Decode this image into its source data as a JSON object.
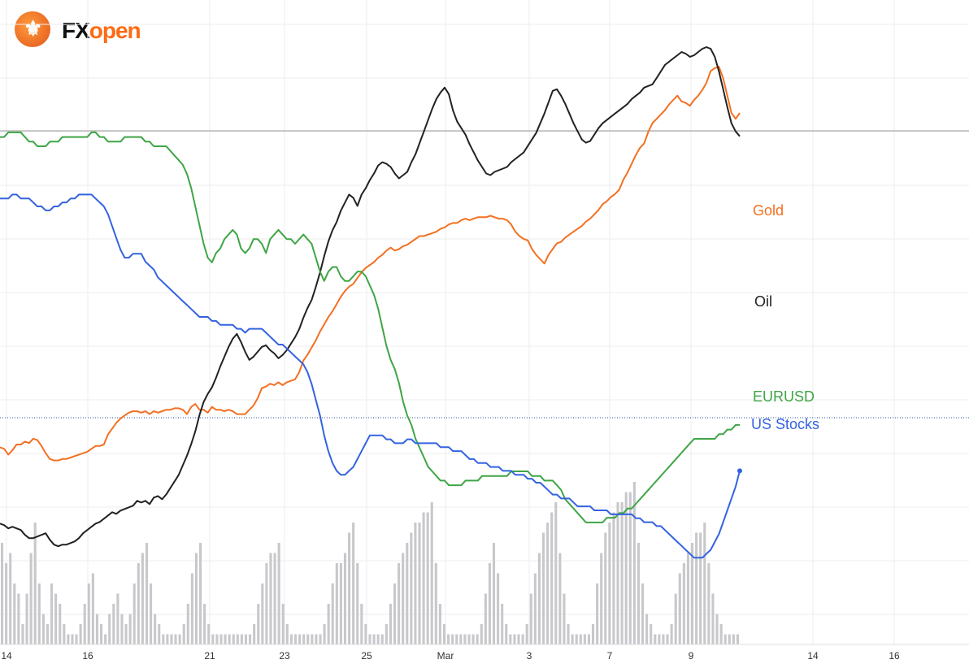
{
  "logo": {
    "fx": "FX",
    "open": "open",
    "glyph": "⚜"
  },
  "chart_data": {
    "type": "line",
    "x_tick_labels": [
      "14",
      "16",
      "21",
      "23",
      "25",
      "Mar",
      "3",
      "7",
      "9",
      "14",
      "16"
    ],
    "grid": true,
    "legend_placement": "right-end labels",
    "colors": {
      "gold": "#f37021",
      "oil": "#222222",
      "eurusd": "#3fa545",
      "us_stocks": "#3463e0",
      "volume": "#c8c8cc",
      "grid": "#eeeeee",
      "ref_line": "#999999",
      "dotted_line": "#2a4ea0"
    },
    "series": [
      {
        "name": "Gold",
        "values": [
          39,
          38,
          34,
          37,
          41,
          41,
          43,
          42,
          45,
          44,
          40,
          35,
          31,
          30,
          30,
          31,
          31,
          32,
          33,
          34,
          35,
          36,
          38,
          40,
          40,
          41,
          48,
          52,
          56,
          59,
          61,
          63,
          64,
          64,
          63,
          64,
          62,
          64,
          63,
          64,
          65,
          65,
          66,
          66,
          65,
          62,
          67,
          69,
          65,
          65,
          63,
          67,
          65,
          65,
          64,
          65,
          64,
          62,
          62,
          62,
          65,
          68,
          73,
          80,
          81,
          83,
          82,
          84,
          82,
          84,
          85,
          86,
          91,
          99,
          103,
          108,
          113,
          119,
          124,
          129,
          133,
          138,
          143,
          147,
          150,
          152,
          156,
          160,
          163,
          165,
          167,
          170,
          172,
          175,
          177,
          175,
          176,
          178,
          179,
          181,
          183,
          185,
          185,
          186,
          187,
          188,
          190,
          191,
          193,
          194,
          194,
          196,
          197,
          196,
          197,
          198,
          198,
          198,
          199,
          198,
          197,
          197,
          196,
          193,
          188,
          185,
          183,
          182,
          176,
          172,
          169,
          166,
          172,
          176,
          180,
          181,
          184,
          186,
          188,
          190,
          192,
          195,
          197,
          200,
          203,
          207,
          209,
          212,
          214,
          217,
          224,
          229,
          235,
          241,
          246,
          249,
          257,
          263,
          266,
          269,
          272,
          276,
          279,
          282,
          278,
          277,
          275,
          279,
          282,
          286,
          291,
          299,
          301,
          302,
          294,
          282,
          270,
          266,
          270
        ]
      },
      {
        "name": "Oil",
        "values": [
          43,
          42,
          40,
          41,
          40,
          39,
          36,
          34,
          34,
          35,
          36,
          37,
          33,
          30,
          29,
          30,
          30,
          31,
          32,
          34,
          37,
          39,
          41,
          43,
          44,
          46,
          48,
          50,
          49,
          51,
          52,
          53,
          54,
          57,
          56,
          57,
          55,
          59,
          60,
          58,
          61,
          65,
          69,
          73,
          79,
          85,
          92,
          100,
          110,
          118,
          123,
          127,
          133,
          140,
          146,
          152,
          157,
          160,
          155,
          149,
          144,
          146,
          149,
          152,
          153,
          150,
          148,
          145,
          147,
          150,
          154,
          158,
          163,
          170,
          176,
          181,
          189,
          198,
          208,
          217,
          224,
          229,
          236,
          241,
          246,
          244,
          239,
          246,
          250,
          255,
          259,
          264,
          266,
          265,
          263,
          259,
          256,
          258,
          260,
          266,
          271,
          278,
          285,
          292,
          299,
          305,
          309,
          312,
          308,
          298,
          291,
          287,
          283,
          277,
          272,
          267,
          263,
          259,
          258,
          260,
          261,
          262,
          263,
          266,
          268,
          270,
          272,
          276,
          280,
          284,
          290,
          296,
          303,
          310,
          311,
          307,
          302,
          296,
          290,
          285,
          280,
          278,
          279,
          283,
          287,
          290,
          292,
          294,
          296,
          298,
          300,
          302,
          305,
          307,
          309,
          312,
          313,
          314,
          318,
          322,
          326,
          328,
          330,
          332,
          334,
          333,
          331,
          332,
          334,
          336,
          337,
          336,
          331,
          322,
          311,
          300,
          290,
          285,
          282
        ]
      },
      {
        "name": "EURUSD",
        "values": [
          100,
          100,
          101,
          101,
          101,
          101,
          100,
          99,
          99,
          98,
          98,
          98,
          99,
          99,
          99,
          100,
          100,
          100,
          100,
          100,
          100,
          100,
          101,
          101,
          100,
          100,
          99,
          99,
          99,
          99,
          100,
          100,
          100,
          100,
          100,
          99,
          99,
          98,
          98,
          98,
          98,
          97,
          96,
          95,
          94,
          92,
          89,
          85,
          81,
          77,
          74,
          73,
          75,
          76,
          78,
          79,
          80,
          79,
          76,
          75,
          76,
          78,
          78,
          77,
          75,
          78,
          79,
          80,
          79,
          78,
          78,
          77,
          78,
          79,
          78,
          77,
          74,
          71,
          69,
          71,
          72,
          72,
          70,
          69,
          69,
          70,
          71,
          71,
          70,
          68,
          66,
          63,
          59,
          55,
          52,
          50,
          47,
          43,
          40,
          38,
          35,
          33,
          31,
          29,
          28,
          27,
          26,
          26,
          25,
          25,
          25,
          25,
          26,
          26,
          26,
          26,
          27,
          27,
          27,
          27,
          27,
          27,
          27,
          28,
          28,
          28,
          28,
          28,
          27,
          27,
          27,
          26,
          26,
          26,
          25,
          24,
          22,
          21,
          20,
          19,
          18,
          17,
          17,
          17,
          17,
          17,
          18,
          18,
          18,
          19,
          19,
          20,
          20,
          21,
          22,
          23,
          24,
          25,
          26,
          27,
          28,
          29,
          30,
          31,
          32,
          33,
          34,
          35,
          35,
          35,
          35,
          35,
          35,
          36,
          36,
          37,
          37,
          38,
          38
        ]
      },
      {
        "name": "US Stocks",
        "values": [
          100,
          100,
          100,
          101,
          101,
          100,
          100,
          100,
          99,
          98,
          98,
          97,
          97,
          98,
          98,
          99,
          99,
          100,
          100,
          101,
          101,
          101,
          101,
          100,
          99,
          98,
          96,
          93,
          90,
          87,
          85,
          85,
          86,
          86,
          86,
          84,
          83,
          82,
          80,
          79,
          78,
          77,
          76,
          75,
          74,
          73,
          72,
          71,
          70,
          70,
          70,
          69,
          69,
          68,
          68,
          68,
          68,
          67,
          67,
          66,
          67,
          67,
          67,
          67,
          66,
          65,
          64,
          63,
          63,
          62,
          61,
          60,
          59,
          58,
          56,
          53,
          49,
          45,
          40,
          36,
          33,
          31,
          30,
          30,
          31,
          32,
          34,
          36,
          38,
          40,
          40,
          40,
          40,
          39,
          39,
          38,
          38,
          38,
          39,
          39,
          38,
          38,
          38,
          38,
          38,
          38,
          37,
          37,
          37,
          36,
          36,
          36,
          35,
          34,
          34,
          33,
          33,
          33,
          32,
          32,
          32,
          31,
          31,
          31,
          30,
          30,
          30,
          29,
          29,
          28,
          28,
          27,
          26,
          25,
          25,
          24,
          24,
          24,
          23,
          22,
          22,
          22,
          22,
          21,
          21,
          21,
          21,
          20,
          20,
          20,
          20,
          20,
          20,
          19,
          19,
          18,
          18,
          18,
          17,
          17,
          16,
          15,
          14,
          13,
          12,
          11,
          10,
          9,
          9,
          9,
          10,
          11,
          13,
          15,
          18,
          21,
          24,
          27,
          31
        ]
      },
      {
        "name": "Volume",
        "values": [
          10,
          8,
          9,
          6,
          5,
          2,
          5,
          9,
          12,
          6,
          3,
          2,
          6,
          5,
          4,
          2,
          1,
          1,
          1,
          2,
          4,
          6,
          7,
          3,
          2,
          1,
          3,
          4,
          5,
          3,
          2,
          3,
          6,
          8,
          9,
          10,
          6,
          3,
          2,
          1,
          1,
          1,
          1,
          1,
          2,
          4,
          7,
          9,
          10,
          4,
          2,
          1,
          1,
          1,
          1,
          1,
          1,
          1,
          1,
          1,
          1,
          2,
          4,
          6,
          8,
          9,
          9,
          10,
          4,
          2,
          1,
          1,
          1,
          1,
          1,
          1,
          1,
          1,
          2,
          4,
          6,
          8,
          8,
          9,
          11,
          12,
          8,
          4,
          2,
          1,
          1,
          1,
          1,
          2,
          4,
          6,
          8,
          9,
          10,
          11,
          12,
          12,
          13,
          13,
          14,
          8,
          4,
          2,
          1,
          1,
          1,
          1,
          1,
          1,
          1,
          1,
          2,
          5,
          8,
          10,
          7,
          4,
          2,
          1,
          1,
          1,
          1,
          2,
          5,
          7,
          9,
          11,
          12,
          13,
          14,
          9,
          5,
          2,
          1,
          1,
          1,
          1,
          1,
          2,
          6,
          9,
          11,
          12,
          13,
          14,
          14,
          15,
          15,
          16,
          10,
          6,
          3,
          2,
          1,
          1,
          1,
          1,
          2,
          5,
          7,
          8,
          9,
          10,
          11,
          11,
          12,
          8,
          5,
          3,
          2,
          1,
          1,
          1,
          1
        ]
      }
    ]
  }
}
